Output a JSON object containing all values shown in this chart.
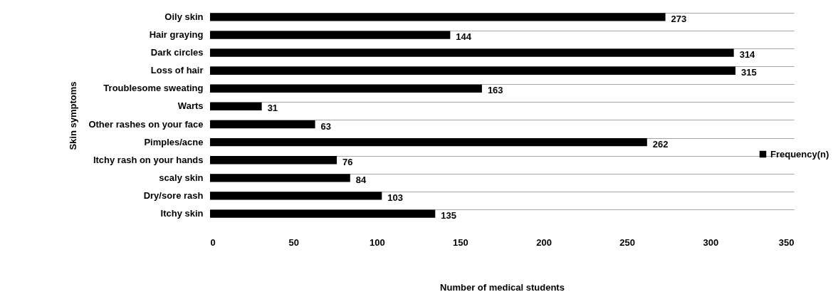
{
  "chart_data": {
    "type": "bar",
    "orientation": "horizontal",
    "xlabel": "Number of medical students",
    "ylabel": "Skin symptoms",
    "categories": [
      "Oily skin",
      "Hair graying",
      "Dark circles ",
      "Loss of hair",
      "Troublesome sweating",
      "Warts",
      "Other rashes on your face",
      "Pimples/acne",
      "Itchy rash on your hands",
      "scaly skin",
      "Dry/sore rash",
      "Itchy skin"
    ],
    "series": [
      {
        "name": "Frequency(n)",
        "color": "#000000",
        "values": [
          273,
          144,
          314,
          315,
          163,
          31,
          63,
          262,
          76,
          84,
          103,
          135
        ]
      }
    ],
    "xlim": [
      0,
      350
    ],
    "xticks": [
      0,
      50,
      100,
      150,
      200,
      250,
      300,
      350
    ],
    "grid": "y",
    "legend": "right",
    "data_labels": true
  }
}
